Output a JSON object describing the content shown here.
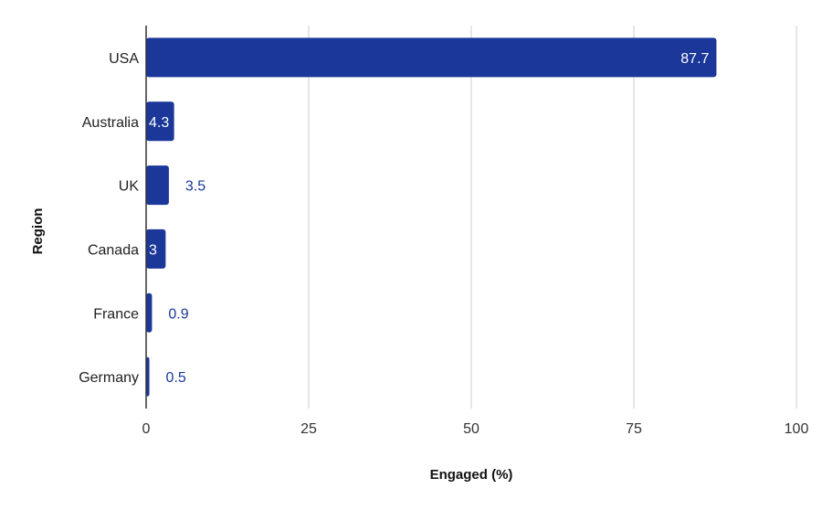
{
  "chart_data": {
    "type": "bar",
    "orientation": "horizontal",
    "categories": [
      "USA",
      "Australia",
      "UK",
      "Canada",
      "France",
      "Germany"
    ],
    "values": [
      87.7,
      4.3,
      3.5,
      3,
      0.9,
      0.5
    ],
    "data_labels": [
      "87.7",
      "4.3",
      "3.5",
      "3",
      "0.9",
      "0.5"
    ],
    "xlabel": "Engaged (%)",
    "ylabel": "Region",
    "xlim": [
      0,
      100
    ],
    "xticks": [
      "0",
      "25",
      "50",
      "75",
      "100"
    ],
    "grid": "vertical",
    "legend": "none",
    "colors": {
      "bar": "#1a3799",
      "label_outside": "#1a3799",
      "label_inside": "#ffffff",
      "grid": "#cccccc",
      "axis": "#333333"
    }
  }
}
